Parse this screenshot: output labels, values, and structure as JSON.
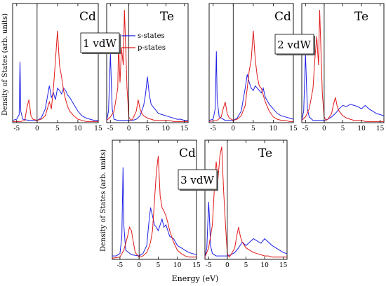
{
  "figure": {
    "ylabel": "Density of States (arb. units)",
    "xlabel": "Energy (eV)"
  },
  "colors": {
    "s_states": "#1f1fe6",
    "p_states": "#e01a1a",
    "axis": "#000000"
  },
  "legend": {
    "s_label": "s-states",
    "p_label": "p-states"
  },
  "chart_data": [
    {
      "type": "line",
      "group": "1 vdW",
      "element": "Cd",
      "xlim": [
        -6,
        15
      ],
      "ylim": [
        0,
        1
      ],
      "xticks": [
        -5,
        0,
        5,
        10,
        15
      ],
      "fermi_line_x": 0,
      "series": [
        {
          "name": "s-states",
          "x": [
            -6,
            -5,
            -4.4,
            -4.2,
            -4,
            -3.5,
            -2,
            0,
            1,
            2,
            3,
            3.5,
            4,
            4.5,
            5,
            5.5,
            6,
            6.5,
            7,
            7.5,
            8,
            9,
            10,
            11,
            12,
            13,
            14,
            15
          ],
          "y": [
            0.02,
            0.03,
            0.07,
            0.53,
            0.1,
            0.03,
            0.02,
            0.02,
            0.04,
            0.12,
            0.32,
            0.22,
            0.26,
            0.2,
            0.3,
            0.28,
            0.25,
            0.3,
            0.28,
            0.24,
            0.22,
            0.16,
            0.1,
            0.06,
            0.04,
            0.03,
            0.02,
            0.02
          ]
        },
        {
          "name": "p-states",
          "x": [
            -6,
            -4,
            -3,
            -2.5,
            -2,
            -1.5,
            -1,
            0,
            1,
            2,
            3,
            3.5,
            4,
            4.5,
            5,
            5.5,
            6,
            6.5,
            7,
            7.5,
            8,
            9,
            10,
            11,
            12,
            13,
            14,
            15
          ],
          "y": [
            0.01,
            0.01,
            0.02,
            0.13,
            0.2,
            0.06,
            0.03,
            0.02,
            0.03,
            0.06,
            0.18,
            0.12,
            0.3,
            0.54,
            0.8,
            0.5,
            0.4,
            0.28,
            0.2,
            0.14,
            0.1,
            0.06,
            0.03,
            0.02,
            0.01,
            0.01,
            0.01,
            0.01
          ]
        }
      ]
    },
    {
      "type": "line",
      "group": "1 vdW",
      "element": "Te",
      "xlim": [
        -6,
        16
      ],
      "ylim": [
        0,
        1
      ],
      "xticks": [
        -5,
        0,
        5,
        10,
        15
      ],
      "fermi_line_x": 0,
      "series": [
        {
          "name": "s-states",
          "x": [
            -6,
            -5.5,
            -5,
            -4.7,
            -4.5,
            -4,
            -3,
            -2,
            -1,
            0,
            1,
            2,
            3,
            4,
            4.5,
            5,
            5.5,
            6,
            7,
            8,
            9,
            10,
            11,
            12,
            13,
            14,
            15,
            16
          ],
          "y": [
            0.02,
            0.1,
            0.6,
            0.3,
            0.12,
            0.03,
            0.02,
            0.02,
            0.02,
            0.02,
            0.02,
            0.03,
            0.06,
            0.15,
            0.25,
            0.4,
            0.25,
            0.16,
            0.12,
            0.08,
            0.07,
            0.06,
            0.05,
            0.04,
            0.03,
            0.03,
            0.02,
            0.02
          ]
        },
        {
          "name": "p-states",
          "x": [
            -6,
            -5,
            -4,
            -3,
            -2.8,
            -2.4,
            -2,
            -1.5,
            -1.2,
            -0.8,
            -0.5,
            0,
            0.5,
            1,
            2,
            2.5,
            3,
            3.5,
            4,
            5,
            6,
            7,
            8,
            9,
            10,
            11,
            12,
            13,
            14,
            15,
            16
          ],
          "y": [
            0.02,
            0.05,
            0.1,
            0.3,
            0.7,
            0.35,
            0.65,
            0.5,
            0.98,
            0.6,
            0.3,
            0.05,
            0.02,
            0.03,
            0.1,
            0.2,
            0.12,
            0.08,
            0.06,
            0.04,
            0.03,
            0.02,
            0.02,
            0.02,
            0.02,
            0.02,
            0.01,
            0.01,
            0.01,
            0.01,
            0.01
          ]
        }
      ]
    },
    {
      "type": "line",
      "group": "2 vdW",
      "element": "Cd",
      "xlim": [
        -6,
        15
      ],
      "ylim": [
        0,
        1
      ],
      "xticks": [
        -5,
        0,
        5,
        10,
        15
      ],
      "fermi_line_x": 0,
      "series": [
        {
          "name": "s-states",
          "x": [
            -6,
            -5,
            -4.5,
            -4.2,
            -4,
            -3.5,
            -2,
            0,
            1,
            2,
            3,
            3.5,
            4,
            4.5,
            5,
            5.5,
            6,
            6.5,
            7,
            7.5,
            8,
            9,
            10,
            11,
            12,
            13,
            14,
            15
          ],
          "y": [
            0.02,
            0.03,
            0.12,
            0.62,
            0.2,
            0.05,
            0.02,
            0.02,
            0.04,
            0.1,
            0.3,
            0.42,
            0.35,
            0.3,
            0.28,
            0.32,
            0.3,
            0.28,
            0.26,
            0.3,
            0.22,
            0.16,
            0.12,
            0.08,
            0.06,
            0.05,
            0.04,
            0.03
          ]
        },
        {
          "name": "p-states",
          "x": [
            -6,
            -4,
            -3,
            -2.5,
            -2,
            -1.5,
            -1,
            0,
            1,
            2,
            3,
            3.5,
            4,
            4.5,
            5,
            5.5,
            6,
            6.5,
            7,
            7.5,
            8,
            9,
            10,
            11,
            12,
            13,
            14,
            15
          ],
          "y": [
            0.01,
            0.02,
            0.05,
            0.12,
            0.18,
            0.08,
            0.04,
            0.02,
            0.03,
            0.06,
            0.15,
            0.3,
            0.45,
            0.55,
            0.8,
            0.55,
            0.4,
            0.32,
            0.3,
            0.24,
            0.18,
            0.1,
            0.05,
            0.03,
            0.02,
            0.02,
            0.01,
            0.01
          ]
        }
      ]
    },
    {
      "type": "line",
      "group": "2 vdW",
      "element": "Te",
      "xlim": [
        -6,
        16
      ],
      "ylim": [
        0,
        1
      ],
      "xticks": [
        -5,
        0,
        5,
        10,
        15
      ],
      "fermi_line_x": 0,
      "series": [
        {
          "name": "s-states",
          "x": [
            -6,
            -5.5,
            -5,
            -4.7,
            -4.5,
            -4,
            -3,
            -2,
            -1,
            0,
            1,
            2,
            3,
            4,
            5,
            6,
            7,
            8,
            9,
            10,
            11,
            12,
            13,
            14,
            15,
            16
          ],
          "y": [
            0.02,
            0.1,
            0.6,
            0.3,
            0.12,
            0.05,
            0.02,
            0.02,
            0.02,
            0.02,
            0.03,
            0.05,
            0.08,
            0.12,
            0.15,
            0.14,
            0.16,
            0.15,
            0.14,
            0.12,
            0.15,
            0.12,
            0.1,
            0.08,
            0.07,
            0.06
          ]
        },
        {
          "name": "p-states",
          "x": [
            -6,
            -5,
            -4,
            -3,
            -2.5,
            -2,
            -1.5,
            -1.2,
            -0.8,
            -0.5,
            0,
            0.5,
            1,
            2,
            2.5,
            3,
            3.5,
            4,
            5,
            6,
            7,
            8,
            9,
            10,
            11,
            12,
            13,
            14,
            15,
            16
          ],
          "y": [
            0.02,
            0.05,
            0.12,
            0.3,
            0.55,
            0.75,
            0.5,
            0.98,
            0.55,
            0.25,
            0.05,
            0.02,
            0.03,
            0.08,
            0.16,
            0.22,
            0.14,
            0.1,
            0.06,
            0.04,
            0.03,
            0.02,
            0.02,
            0.02,
            0.01,
            0.01,
            0.01,
            0.01,
            0.01,
            0.01
          ]
        }
      ]
    },
    {
      "type": "line",
      "group": "3 vdW",
      "element": "Cd",
      "xlim": [
        -7,
        15
      ],
      "ylim": [
        0,
        1
      ],
      "xticks": [
        -5,
        0,
        5,
        10,
        15
      ],
      "fermi_line_x": 0,
      "series": [
        {
          "name": "s-states",
          "x": [
            -7,
            -6,
            -5,
            -4.5,
            -4.2,
            -4,
            -3.5,
            -2,
            0,
            1,
            2,
            2.5,
            3,
            3.5,
            4,
            4.5,
            5,
            5.5,
            6,
            6.5,
            7,
            7.5,
            8,
            9,
            10,
            11,
            12,
            13,
            14,
            15
          ],
          "y": [
            0.03,
            0.03,
            0.05,
            0.2,
            0.8,
            0.3,
            0.08,
            0.04,
            0.03,
            0.05,
            0.12,
            0.3,
            0.45,
            0.38,
            0.3,
            0.28,
            0.25,
            0.3,
            0.35,
            0.28,
            0.3,
            0.25,
            0.2,
            0.18,
            0.12,
            0.1,
            0.08,
            0.06,
            0.05,
            0.04
          ]
        },
        {
          "name": "p-states",
          "x": [
            -7,
            -5,
            -4,
            -3,
            -2.5,
            -2,
            -1.5,
            -1,
            0,
            1,
            2,
            2.5,
            3,
            3.5,
            4,
            4.5,
            5,
            5.5,
            6,
            6.5,
            7,
            7.5,
            8,
            9,
            10,
            11,
            12,
            13,
            14,
            15
          ],
          "y": [
            0.01,
            0.02,
            0.08,
            0.2,
            0.28,
            0.25,
            0.15,
            0.06,
            0.02,
            0.03,
            0.06,
            0.1,
            0.15,
            0.25,
            0.5,
            0.75,
            0.9,
            0.55,
            0.45,
            0.42,
            0.38,
            0.32,
            0.25,
            0.15,
            0.08,
            0.05,
            0.03,
            0.02,
            0.02,
            0.02
          ]
        }
      ]
    },
    {
      "type": "line",
      "group": "3 vdW",
      "element": "Te",
      "xlim": [
        -6,
        16
      ],
      "ylim": [
        0,
        1
      ],
      "xticks": [
        -5,
        0,
        5,
        10,
        15
      ],
      "fermi_line_x": 0,
      "series": [
        {
          "name": "s-states",
          "x": [
            -6,
            -5.5,
            -5,
            -4.7,
            -4.5,
            -4,
            -3,
            -2,
            -1,
            0,
            1,
            2,
            3,
            4,
            5,
            6,
            7,
            8,
            9,
            10,
            11,
            12,
            13,
            14,
            15,
            16
          ],
          "y": [
            0.02,
            0.1,
            0.5,
            0.3,
            0.12,
            0.05,
            0.03,
            0.03,
            0.03,
            0.03,
            0.04,
            0.06,
            0.1,
            0.15,
            0.12,
            0.15,
            0.18,
            0.16,
            0.14,
            0.18,
            0.15,
            0.12,
            0.1,
            0.08,
            0.06,
            0.05
          ]
        },
        {
          "name": "p-states",
          "x": [
            -6,
            -5,
            -4,
            -3.5,
            -3,
            -2.5,
            -2,
            -1.5,
            -1,
            -0.5,
            0,
            0.5,
            1,
            2,
            2.5,
            3,
            3.5,
            4,
            5,
            6,
            7,
            8,
            9,
            10,
            11,
            12,
            13,
            14,
            15,
            16
          ],
          "y": [
            0.02,
            0.1,
            0.3,
            0.6,
            0.85,
            0.7,
            0.9,
            0.98,
            0.6,
            0.3,
            0.05,
            0.02,
            0.04,
            0.1,
            0.2,
            0.28,
            0.2,
            0.15,
            0.1,
            0.08,
            0.06,
            0.05,
            0.04,
            0.03,
            0.03,
            0.02,
            0.02,
            0.02,
            0.02,
            0.02
          ]
        }
      ]
    }
  ]
}
